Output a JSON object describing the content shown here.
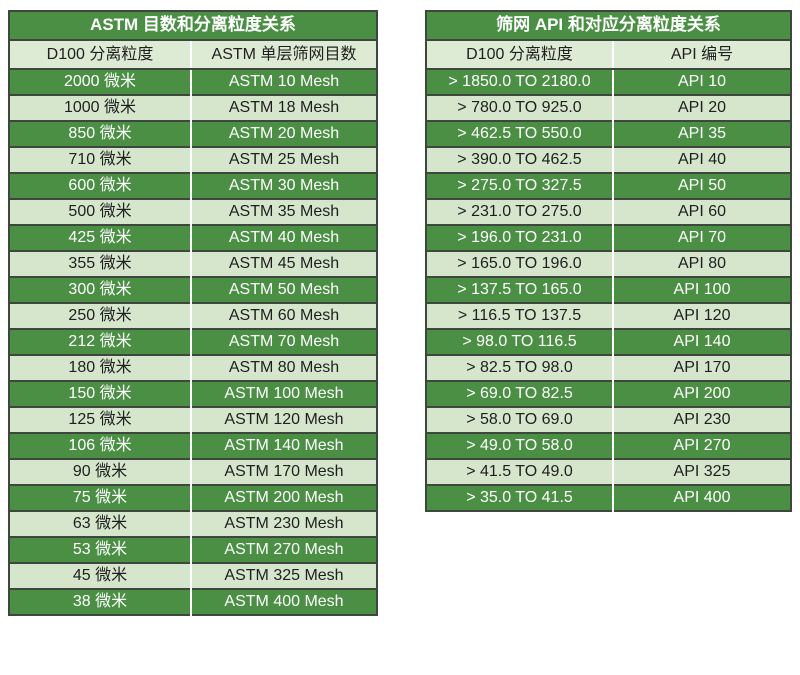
{
  "colors": {
    "green": "#4a8f44",
    "light_row": "#d6e6cc",
    "subheader_bg": "#ddebd5",
    "border": "#3d473d",
    "divider": "#ffffff",
    "light_text": "#ffffff",
    "dark_text": "#1f1f1f",
    "page_bg": "#ffffff"
  },
  "tables": [
    {
      "title": "ASTM 目数和分离粒度关系",
      "columns": [
        "D100 分离粒度",
        "ASTM 单层筛网目数"
      ],
      "rows": [
        [
          "2000 微米",
          "ASTM 10 Mesh"
        ],
        [
          "1000 微米",
          "ASTM 18 Mesh"
        ],
        [
          "850 微米",
          "ASTM 20 Mesh"
        ],
        [
          "710 微米",
          "ASTM 25 Mesh"
        ],
        [
          "600 微米",
          "ASTM 30 Mesh"
        ],
        [
          "500 微米",
          "ASTM 35 Mesh"
        ],
        [
          "425 微米",
          "ASTM 40 Mesh"
        ],
        [
          "355 微米",
          "ASTM 45 Mesh"
        ],
        [
          "300 微米",
          "ASTM 50 Mesh"
        ],
        [
          "250 微米",
          "ASTM 60 Mesh"
        ],
        [
          "212 微米",
          "ASTM 70 Mesh"
        ],
        [
          "180 微米",
          "ASTM 80 Mesh"
        ],
        [
          "150 微米",
          "ASTM 100 Mesh"
        ],
        [
          "125 微米",
          "ASTM 120 Mesh"
        ],
        [
          "106 微米",
          "ASTM 140 Mesh"
        ],
        [
          "90 微米",
          "ASTM 170 Mesh"
        ],
        [
          "75 微米",
          "ASTM 200 Mesh"
        ],
        [
          "63 微米",
          "ASTM 230 Mesh"
        ],
        [
          "53 微米",
          "ASTM 270 Mesh"
        ],
        [
          "45 微米",
          "ASTM 325 Mesh"
        ],
        [
          "38 微米",
          "ASTM 400 Mesh"
        ]
      ]
    },
    {
      "title": "筛网 API 和对应分离粒度关系",
      "columns": [
        "D100 分离粒度",
        "API 编号"
      ],
      "rows": [
        [
          "> 1850.0 TO 2180.0",
          "API 10"
        ],
        [
          "> 780.0 TO 925.0",
          "API 20"
        ],
        [
          "> 462.5 TO 550.0",
          "API 35"
        ],
        [
          "> 390.0 TO 462.5",
          "API 40"
        ],
        [
          "> 275.0 TO 327.5",
          "API 50"
        ],
        [
          "> 231.0 TO 275.0",
          "API 60"
        ],
        [
          "> 196.0 TO 231.0",
          "API 70"
        ],
        [
          "> 165.0 TO 196.0",
          "API 80"
        ],
        [
          "> 137.5 TO 165.0",
          "API 100"
        ],
        [
          "> 116.5 TO 137.5",
          "API 120"
        ],
        [
          "> 98.0 TO 116.5",
          "API 140"
        ],
        [
          "> 82.5 TO 98.0",
          "API 170"
        ],
        [
          "> 69.0 TO 82.5",
          "API 200"
        ],
        [
          "> 58.0 TO 69.0",
          "API 230"
        ],
        [
          "> 49.0 TO 58.0",
          "API 270"
        ],
        [
          "> 41.5 TO 49.0",
          "API 325"
        ],
        [
          "> 35.0 TO 41.5",
          "API 400"
        ]
      ]
    }
  ]
}
